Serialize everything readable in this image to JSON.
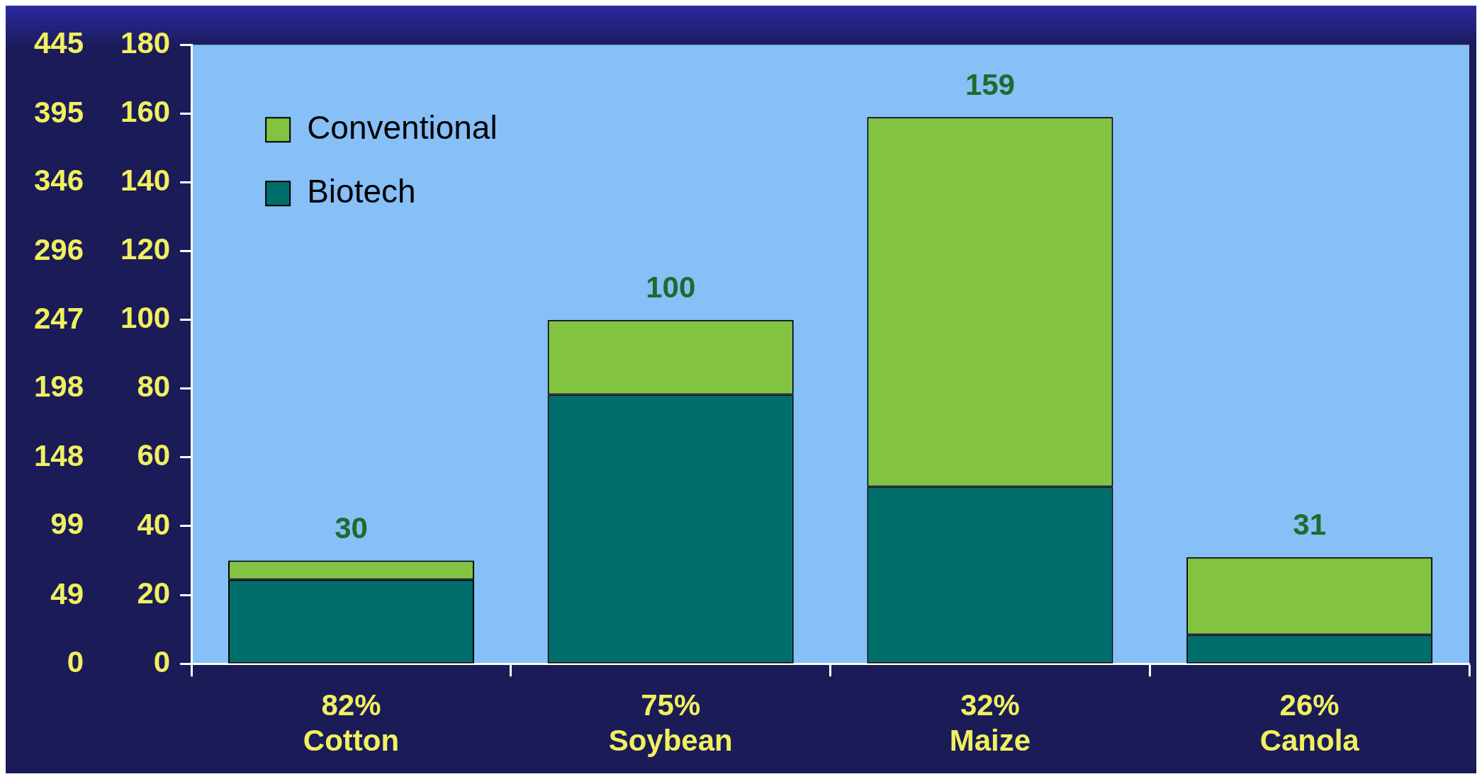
{
  "chart_data": {
    "type": "bar",
    "stacked": true,
    "categories": [
      "82%\nCotton",
      "75%\nSoybean",
      "32%\nMaize",
      "26%\nCanola"
    ],
    "series": [
      {
        "name": "Biotech",
        "color": "#006e6a",
        "values": [
          24.4,
          78.2,
          51.4,
          8.4
        ]
      },
      {
        "name": "Conventional",
        "color": "#82c341",
        "values": [
          5.6,
          21.8,
          107.6,
          22.6
        ]
      }
    ],
    "totals": [
      "30",
      "100",
      "159",
      "31"
    ],
    "ylim": [
      0,
      180
    ],
    "yticks": [
      0,
      20,
      40,
      60,
      80,
      100,
      120,
      140,
      160,
      180
    ],
    "y2lim": [
      0,
      445
    ],
    "y2ticks": [
      0,
      49,
      99,
      148,
      198,
      247,
      296,
      346,
      395,
      445
    ],
    "legend": "top left",
    "grid": false
  }
}
